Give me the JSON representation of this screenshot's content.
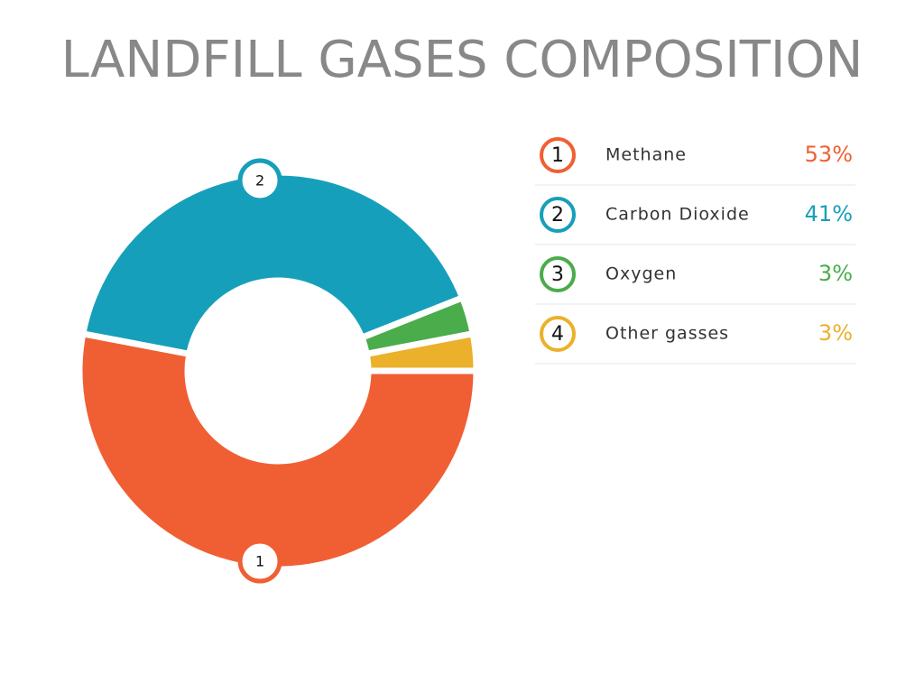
{
  "chart_data": {
    "type": "donut",
    "title": "LANDFILL GASES COMPOSITION",
    "categories": [
      "Methane",
      "Carbon Dioxide",
      "Oxygen",
      "Other gasses"
    ],
    "numbers": [
      "1",
      "2",
      "3",
      "4"
    ],
    "values": [
      53,
      41,
      3,
      3
    ],
    "value_labels": [
      "53%",
      "41%",
      "3%",
      "3%"
    ],
    "colors": [
      "#f05f33",
      "#169fba",
      "#4aac4a",
      "#ebb12b"
    ]
  }
}
